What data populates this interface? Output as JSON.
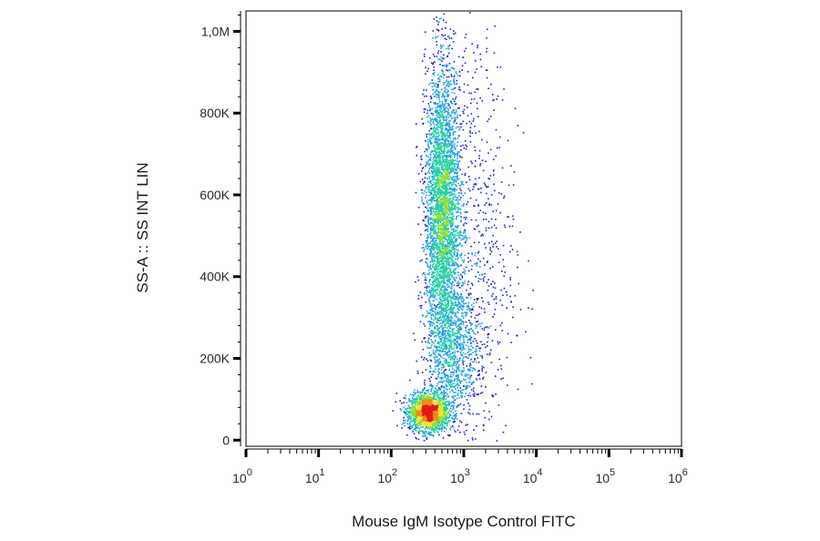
{
  "chart_data": {
    "type": "scatter",
    "subtype": "flow-cytometry-density-dot-plot",
    "xlabel": "Mouse IgM Isotype Control FITC",
    "ylabel": "SS-A :: SS INT LIN",
    "x_scale": "log",
    "y_scale": "linear",
    "xlim": [
      1,
      1000000
    ],
    "ylim": [
      -15000,
      1050000
    ],
    "x_ticks": [
      {
        "value": 1,
        "base": "10",
        "exp": "0"
      },
      {
        "value": 10,
        "base": "10",
        "exp": "1"
      },
      {
        "value": 100,
        "base": "10",
        "exp": "2"
      },
      {
        "value": 1000,
        "base": "10",
        "exp": "3"
      },
      {
        "value": 10000,
        "base": "10",
        "exp": "4"
      },
      {
        "value": 100000,
        "base": "10",
        "exp": "5"
      },
      {
        "value": 1000000,
        "base": "10",
        "exp": "6"
      }
    ],
    "y_ticks": [
      {
        "value": 0,
        "label": "0"
      },
      {
        "value": 200000,
        "label": "200K"
      },
      {
        "value": 400000,
        "label": "400K"
      },
      {
        "value": 600000,
        "label": "600K"
      },
      {
        "value": 800000,
        "label": "800K"
      },
      {
        "value": 1000000,
        "label": "1,0M"
      }
    ],
    "grid": false,
    "legend": "none",
    "colormap": [
      "#1f1fd0",
      "#1aa0e6",
      "#25d0a0",
      "#8be03a",
      "#f2e42a",
      "#f28a1a",
      "#e01a1a"
    ],
    "populations": [
      {
        "x_center": 320,
        "x_log_spread": 0.13,
        "y_center": 70000,
        "y_spread": 22000,
        "density": "high"
      },
      {
        "x_center": 500,
        "x_log_spread": 0.12,
        "y_center": 560000,
        "y_spread": 180000,
        "density": "medium"
      },
      {
        "x_center": 700,
        "x_log_spread": 0.18,
        "y_center": 230000,
        "y_spread": 90000,
        "density": "low"
      },
      {
        "x_center": 1400,
        "x_log_spread": 0.28,
        "y_center": 450000,
        "y_spread": 300000,
        "density": "sparse"
      }
    ]
  }
}
